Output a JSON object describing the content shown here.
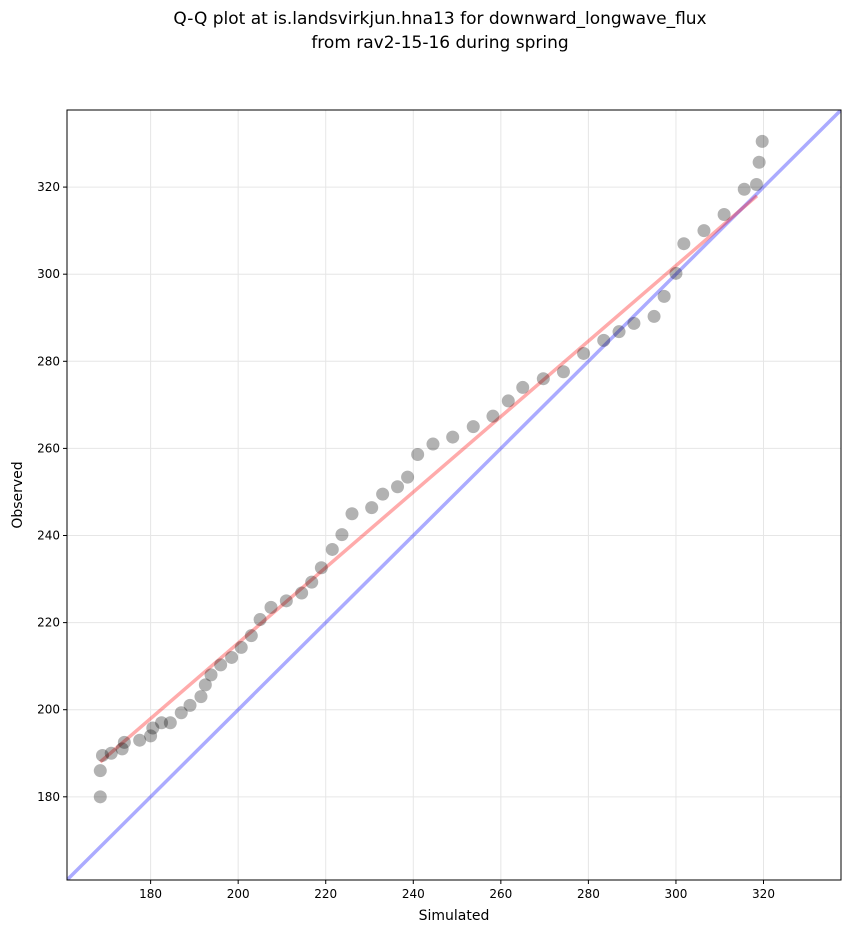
{
  "chart_data": {
    "type": "scatter",
    "title": [
      "Q-Q plot at is.landsvirkjun.hna13 for downward_longwave_flux",
      "from rav2-15-16 during spring"
    ],
    "xlabel": "Simulated",
    "ylabel": "Observed",
    "xlim": [
      160.9,
      337.7
    ],
    "ylim": [
      160.9,
      337.7
    ],
    "xticks": [
      180,
      200,
      220,
      240,
      260,
      280,
      300,
      320
    ],
    "yticks": [
      180,
      200,
      220,
      240,
      260,
      280,
      300,
      320
    ],
    "grid": true,
    "series": [
      {
        "name": "quantiles",
        "color": "#000000",
        "points": [
          [
            168.5,
            180
          ],
          [
            168.5,
            186
          ],
          [
            169,
            189.5
          ],
          [
            171,
            190
          ],
          [
            173.5,
            191
          ],
          [
            174,
            192.5
          ],
          [
            177.5,
            193
          ],
          [
            180,
            194
          ],
          [
            180.5,
            195.8
          ],
          [
            182.5,
            197
          ],
          [
            184.5,
            197
          ],
          [
            187,
            199.3
          ],
          [
            189,
            201
          ],
          [
            191.5,
            203
          ],
          [
            192.5,
            205.7
          ],
          [
            193.8,
            208
          ],
          [
            196,
            210.3
          ],
          [
            198.5,
            212
          ],
          [
            200.7,
            214.3
          ],
          [
            203,
            217
          ],
          [
            205,
            220.7
          ],
          [
            207.5,
            223.5
          ],
          [
            211,
            225
          ],
          [
            214.5,
            226.8
          ],
          [
            216.8,
            229.3
          ],
          [
            219,
            232.6
          ],
          [
            221.5,
            236.8
          ],
          [
            223.7,
            240.2
          ],
          [
            226,
            245
          ],
          [
            230.5,
            246.4
          ],
          [
            233,
            249.5
          ],
          [
            236.4,
            251.2
          ],
          [
            238.7,
            253.4
          ],
          [
            241,
            258.6
          ],
          [
            244.5,
            261
          ],
          [
            249,
            262.6
          ],
          [
            253.7,
            265
          ],
          [
            258.2,
            267.4
          ],
          [
            261.7,
            270.9
          ],
          [
            265,
            274
          ],
          [
            269.7,
            276
          ],
          [
            274.3,
            277.6
          ],
          [
            278.9,
            281.8
          ],
          [
            283.5,
            284.8
          ],
          [
            287,
            286.8
          ],
          [
            290.4,
            288.7
          ],
          [
            295,
            290.3
          ],
          [
            297.3,
            294.9
          ],
          [
            300,
            300.2
          ],
          [
            301.8,
            307
          ],
          [
            306.4,
            310
          ],
          [
            311,
            313.7
          ],
          [
            315.6,
            319.5
          ],
          [
            318.4,
            320.6
          ],
          [
            319,
            325.7
          ],
          [
            319.7,
            330.5
          ]
        ]
      }
    ],
    "fit_line": {
      "name": "linear fit",
      "color": "#ff0000",
      "from": [
        168.5,
        188
      ],
      "to": [
        318.5,
        318
      ]
    },
    "identity_line": {
      "name": "1:1",
      "color": "#0000ff"
    }
  }
}
